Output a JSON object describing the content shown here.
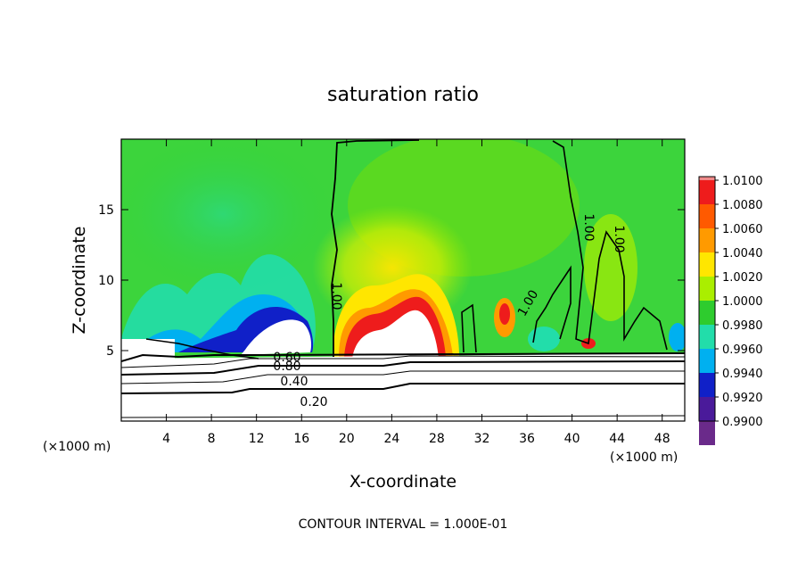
{
  "chart_data": {
    "type": "heatmap",
    "title": "saturation ratio",
    "xlabel": "X-coordinate",
    "ylabel": "Z-coordinate",
    "x_unit": "(×1000 m)",
    "x_unit_right": "(×1000 m)",
    "footer": "CONTOUR INTERVAL = 1.000E-01",
    "xlim": [
      0,
      50
    ],
    "ylim": [
      0,
      20
    ],
    "x_ticks": [
      4,
      8,
      12,
      16,
      20,
      24,
      28,
      32,
      36,
      40,
      44,
      48
    ],
    "y_ticks": [
      5,
      10,
      15
    ],
    "colorbar": {
      "levels": [
        "1.0100",
        "1.0080",
        "1.0060",
        "1.0040",
        "1.0020",
        "1.0000",
        "0.9980",
        "0.9960",
        "0.9940",
        "0.9920",
        "0.9900"
      ],
      "colors": [
        "#f08a8a",
        "#ee1c1c",
        "#ff5a00",
        "#ff9a00",
        "#ffe600",
        "#aaee00",
        "#2ecc2e",
        "#22ddaa",
        "#00b0f0",
        "#1020c8",
        "#4a1a9a",
        "#6a2a8a"
      ]
    },
    "contour_labels": [
      "1.00",
      "1.00",
      "1.00",
      "1.00",
      "0.60",
      "0.80",
      "0.40",
      "0.20"
    ]
  }
}
